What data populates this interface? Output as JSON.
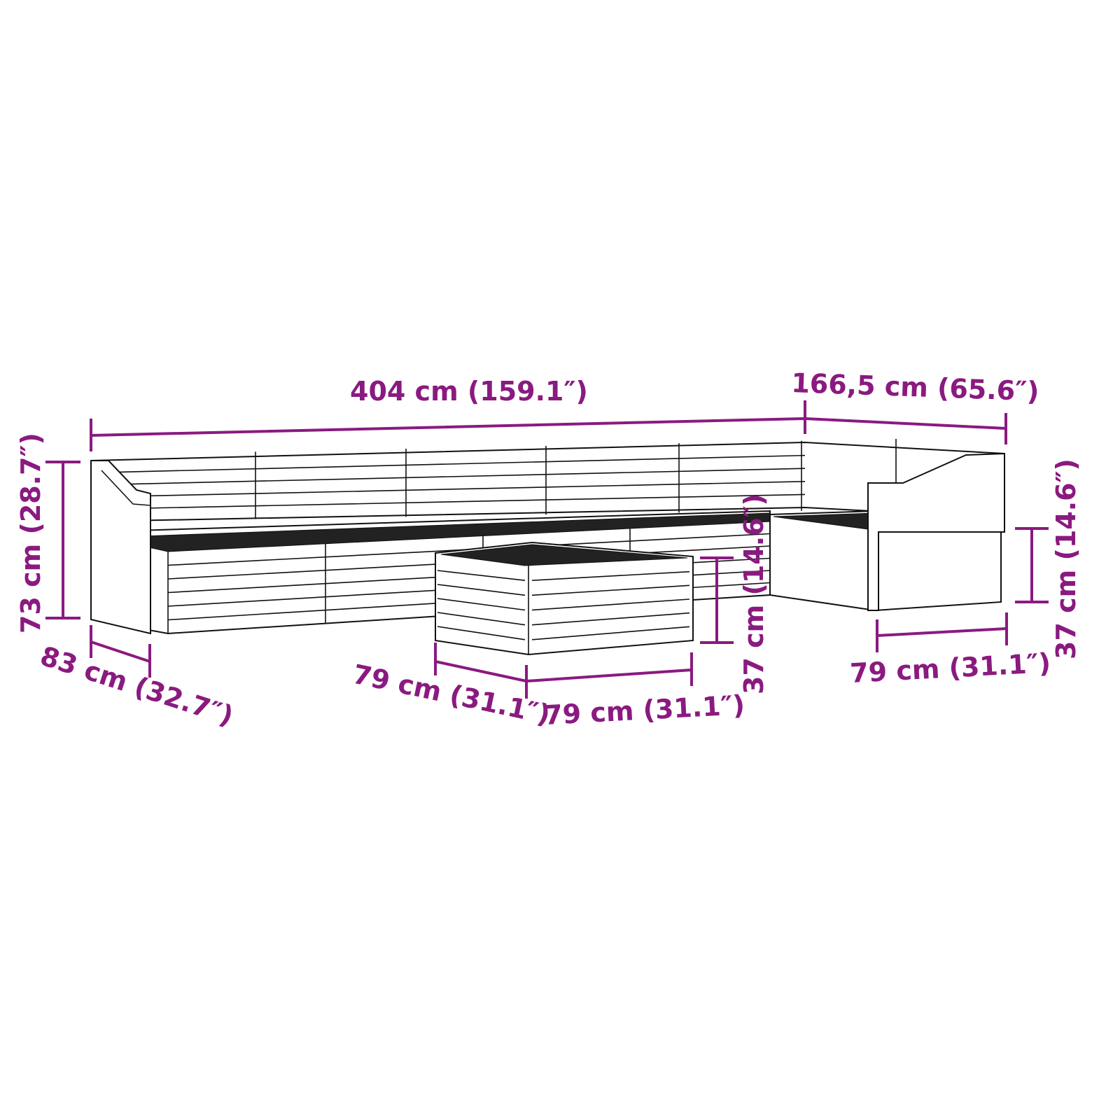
{
  "colors": {
    "dimension": "#8a1a80",
    "line": "#111111"
  },
  "dimensions": {
    "total_width": "404 cm (159.1″)",
    "corner_width": "166,5 cm (65.6″)",
    "height": "73 cm (28.7″)",
    "depth": "83 cm (32.7″)",
    "ottoman_depth": "79 cm (31.1″)",
    "ottoman_width": "79 cm (31.1″)",
    "ottoman_height": "37 cm (14.6″)",
    "corner_seat_width": "79 cm (31.1″)",
    "corner_seat_height": "37 cm (14.6″)"
  }
}
